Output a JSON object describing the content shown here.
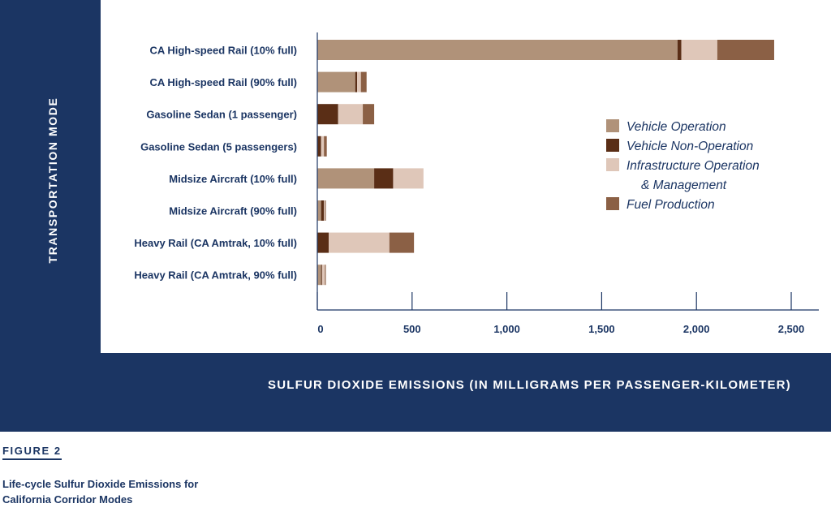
{
  "chart_data": {
    "type": "bar",
    "orientation": "horizontal",
    "stacked": true,
    "categories": [
      "CA High-speed Rail (10% full)",
      "CA High-speed Rail (90% full)",
      "Gasoline Sedan (1 passenger)",
      "Gasoline Sedan (5 passengers)",
      "Midsize Aircraft (10% full)",
      "Midsize Aircraft (90% full)",
      "Heavy Rail (CA Amtrak, 10% full)",
      "Heavy Rail (CA Amtrak, 90% full)"
    ],
    "series": [
      {
        "name": "Vehicle Operation",
        "color": "#b09279",
        "values": [
          1900,
          200,
          0,
          0,
          300,
          20,
          0,
          20
        ]
      },
      {
        "name": "Vehicle Non-Operation",
        "color": "#5a2e16",
        "values": [
          20,
          10,
          110,
          20,
          100,
          15,
          60,
          5
        ]
      },
      {
        "name": "Infrastructure Operation & Management",
        "color": "#dfc7b9",
        "values": [
          190,
          20,
          130,
          15,
          160,
          5,
          320,
          15
        ]
      },
      {
        "name": "Fuel Production",
        "color": "#8b6045",
        "values": [
          300,
          30,
          60,
          15,
          0,
          5,
          130,
          5
        ]
      }
    ],
    "legend": {
      "position": "right",
      "labels": [
        {
          "lines": [
            "Vehicle Operation"
          ]
        },
        {
          "lines": [
            "Vehicle Non-Operation"
          ]
        },
        {
          "lines": [
            "Infrastructure Operation",
            "& Management"
          ]
        },
        {
          "lines": [
            "Fuel Production"
          ]
        }
      ]
    },
    "xlim": [
      0,
      2650
    ],
    "xticks": [
      0,
      500,
      1000,
      1500,
      2000,
      2500
    ],
    "xtick_labels": [
      "0",
      "500",
      "1,000",
      "1,500",
      "2,000",
      "2,500"
    ],
    "xlabel": "SULFUR DIOXIDE EMISSIONS (IN MILLIGRAMS PER PASSENGER-KILOMETER)",
    "ylabel": "TRANSPORTATION MODE",
    "grid": false
  },
  "figure": {
    "label": "FIGURE 2",
    "caption_lines": [
      "Life-cycle Sulfur Dioxide Emissions for",
      "California Corridor Modes"
    ]
  },
  "colors": {
    "frame": "#1b3563",
    "axis": "#1b3563"
  }
}
